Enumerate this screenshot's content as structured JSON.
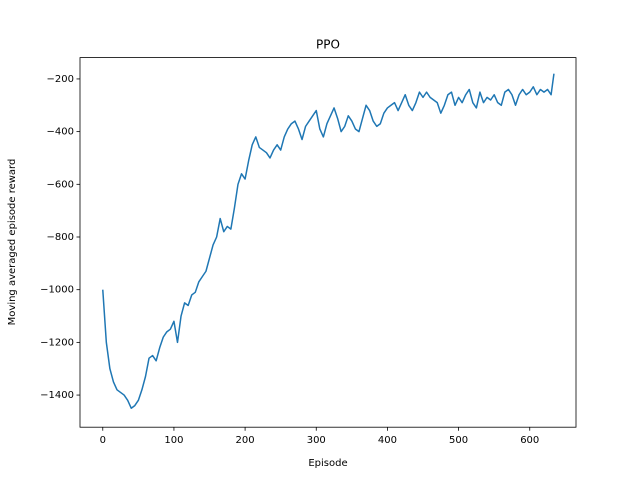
{
  "chart_data": {
    "type": "line",
    "title": "PPO",
    "xlabel": "Episode",
    "ylabel": "Moving averaged episode reward",
    "xlim": [
      -32,
      665
    ],
    "ylim": [
      -1522,
      -119
    ],
    "xticks": [
      0,
      100,
      200,
      300,
      400,
      500,
      600
    ],
    "yticks": [
      {
        "value": -1400,
        "label": "−1400"
      },
      {
        "value": -1200,
        "label": "−1200"
      },
      {
        "value": -1000,
        "label": "−1000"
      },
      {
        "value": -800,
        "label": "−800"
      },
      {
        "value": -600,
        "label": "−600"
      },
      {
        "value": -400,
        "label": "−400"
      },
      {
        "value": -200,
        "label": "−200"
      }
    ],
    "series": [
      {
        "color": "#1f77b4",
        "x": [
          0,
          5,
          10,
          15,
          20,
          25,
          30,
          35,
          40,
          45,
          50,
          55,
          60,
          65,
          70,
          75,
          80,
          85,
          90,
          95,
          100,
          105,
          110,
          115,
          120,
          125,
          130,
          135,
          140,
          145,
          150,
          155,
          160,
          165,
          170,
          175,
          180,
          185,
          190,
          195,
          200,
          205,
          210,
          215,
          220,
          225,
          230,
          235,
          240,
          245,
          250,
          255,
          260,
          265,
          270,
          275,
          280,
          285,
          290,
          295,
          300,
          305,
          310,
          315,
          320,
          325,
          330,
          335,
          340,
          345,
          350,
          355,
          360,
          365,
          370,
          375,
          380,
          385,
          390,
          395,
          400,
          405,
          410,
          415,
          420,
          425,
          430,
          435,
          440,
          445,
          450,
          455,
          460,
          465,
          470,
          475,
          480,
          485,
          490,
          495,
          500,
          505,
          510,
          515,
          520,
          525,
          530,
          535,
          540,
          545,
          550,
          555,
          560,
          565,
          570,
          575,
          580,
          585,
          590,
          595,
          600,
          605,
          610,
          615,
          620,
          625,
          630,
          634
        ],
        "values": [
          -1000,
          -1200,
          -1300,
          -1350,
          -1380,
          -1390,
          -1400,
          -1420,
          -1450,
          -1440,
          -1420,
          -1380,
          -1330,
          -1260,
          -1250,
          -1270,
          -1220,
          -1180,
          -1160,
          -1150,
          -1120,
          -1200,
          -1100,
          -1050,
          -1060,
          -1020,
          -1010,
          -970,
          -950,
          -930,
          -880,
          -830,
          -800,
          -730,
          -780,
          -760,
          -770,
          -690,
          -600,
          -560,
          -580,
          -510,
          -450,
          -420,
          -460,
          -470,
          -480,
          -500,
          -470,
          -450,
          -470,
          -420,
          -390,
          -370,
          -360,
          -390,
          -430,
          -380,
          -360,
          -340,
          -320,
          -390,
          -420,
          -370,
          -340,
          -310,
          -350,
          -400,
          -380,
          -340,
          -360,
          -390,
          -400,
          -350,
          -300,
          -320,
          -360,
          -380,
          -370,
          -330,
          -310,
          -300,
          -290,
          -320,
          -290,
          -260,
          -300,
          -320,
          -290,
          -250,
          -270,
          -250,
          -270,
          -280,
          -290,
          -330,
          -300,
          -260,
          -250,
          -300,
          -270,
          -290,
          -260,
          -240,
          -290,
          -310,
          -250,
          -290,
          -270,
          -280,
          -260,
          -290,
          -300,
          -250,
          -240,
          -260,
          -300,
          -260,
          -240,
          -260,
          -250,
          -230,
          -260,
          -240,
          -250,
          -240,
          -260,
          -180
        ]
      }
    ]
  }
}
